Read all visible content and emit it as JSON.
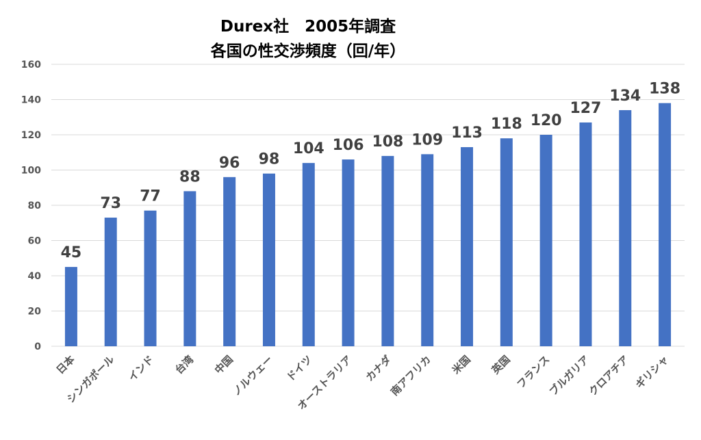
{
  "chart_data": {
    "type": "bar",
    "title": [
      "Durex社　2005年調査",
      "各国の性交渉頻度（回/年）"
    ],
    "categories": [
      "日本",
      "シンガポール",
      "インド",
      "台湾",
      "中国",
      "ノルウェー",
      "ドイツ",
      "オーストラリア",
      "カナダ",
      "南アフリカ",
      "米国",
      "英国",
      "フランス",
      "ブルガリア",
      "クロアチア",
      "ギリシャ"
    ],
    "values": [
      45,
      73,
      77,
      88,
      96,
      98,
      104,
      106,
      108,
      109,
      113,
      118,
      120,
      127,
      134,
      138
    ],
    "data_labels": [
      "45",
      "73",
      "77",
      "88",
      "96",
      "98",
      "104",
      "106",
      "108",
      "109",
      "113",
      "118",
      "120",
      "127",
      "134",
      "138"
    ],
    "ylim": [
      0,
      160
    ],
    "yticks": [
      "0",
      "20",
      "40",
      "60",
      "80",
      "100",
      "120",
      "140",
      "160"
    ],
    "grid": true,
    "legend": "none",
    "bar_color": "#4472c4",
    "xlabel": "",
    "ylabel": ""
  }
}
